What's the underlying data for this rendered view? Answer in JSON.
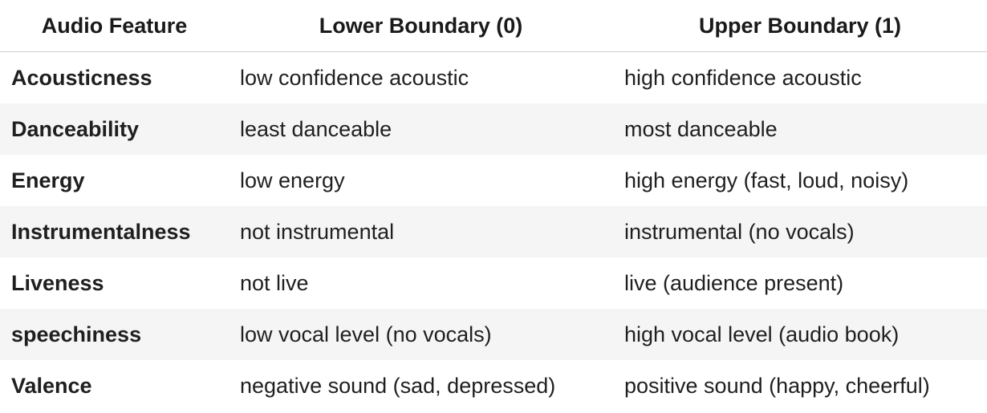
{
  "table": {
    "headers": [
      "Audio Feature",
      "Lower Boundary (0)",
      "Upper Boundary (1)"
    ],
    "rows": [
      {
        "feature": "Acousticness",
        "lower": "low confidence acoustic",
        "upper": "high confidence acoustic"
      },
      {
        "feature": "Danceability",
        "lower": "least danceable",
        "upper": "most danceable"
      },
      {
        "feature": "Energy",
        "lower": "low energy",
        "upper": "high energy (fast, loud, noisy)"
      },
      {
        "feature": "Instrumentalness",
        "lower": "not instrumental",
        "upper": "instrumental (no vocals)"
      },
      {
        "feature": "Liveness",
        "lower": "not live",
        "upper": "live (audience present)"
      },
      {
        "feature": "speechiness",
        "lower": "low vocal level (no vocals)",
        "upper": "high vocal level (audio book)"
      },
      {
        "feature": "Valence",
        "lower": "negative sound (sad, depressed)",
        "upper": "positive sound (happy, cheerful)"
      }
    ]
  }
}
